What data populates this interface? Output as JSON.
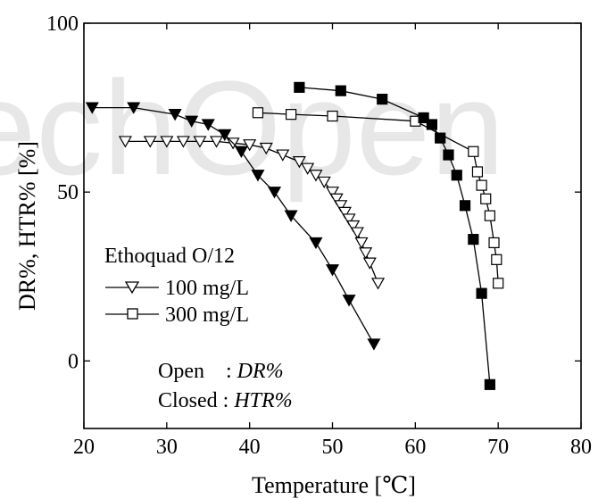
{
  "chart_data": {
    "type": "scatter",
    "xlabel": "Temperature [℃]",
    "ylabel": "DR%, HTR% [%]",
    "xlim": [
      20,
      80
    ],
    "ylim": [
      -20,
      100
    ],
    "xticks": [
      20,
      30,
      40,
      50,
      60,
      70,
      80
    ],
    "yticks": [
      0,
      50,
      100
    ],
    "grid": false,
    "legend": {
      "placement": "center-left",
      "title": "Ethoquad O/12",
      "entries": [
        {
          "label": "100 mg/L",
          "marker": "triangle-down-open"
        },
        {
          "label": "300 mg/L",
          "marker": "square-open"
        }
      ]
    },
    "annotations": [
      {
        "prefix": "Open : ",
        "value": "DR%"
      },
      {
        "prefix": "Closed : ",
        "value": "HTR%"
      }
    ],
    "series": [
      {
        "concentration": "100 mg/L",
        "measure": "DR%",
        "marker": "triangle-down",
        "filled": false,
        "x": [
          25,
          28,
          30,
          32,
          34,
          36,
          38,
          40,
          42,
          44,
          46,
          47,
          48,
          49,
          50,
          50.5,
          51,
          51.5,
          52,
          52.5,
          53,
          53.5,
          54,
          54.5,
          55.5
        ],
        "y": [
          65,
          65,
          65,
          65,
          65,
          65,
          64.5,
          64,
          63,
          61,
          59,
          57,
          55,
          53,
          50,
          48,
          46,
          44,
          42,
          40,
          38,
          35,
          32,
          29,
          23
        ]
      },
      {
        "concentration": "100 mg/L",
        "measure": "HTR%",
        "marker": "triangle-down",
        "filled": true,
        "x": [
          21,
          26,
          31,
          33,
          35,
          37,
          39,
          41,
          43,
          45,
          48,
          50,
          52,
          55
        ],
        "y": [
          75,
          75,
          73,
          71,
          70,
          67,
          62,
          55,
          50,
          43,
          35,
          27,
          18,
          5
        ]
      },
      {
        "concentration": "300 mg/L",
        "measure": "DR%",
        "marker": "square",
        "filled": false,
        "x": [
          41,
          45,
          50,
          60,
          67,
          67.5,
          68,
          68.5,
          69,
          69.5,
          69.8,
          70
        ],
        "y": [
          73.5,
          73,
          72.5,
          71,
          62,
          56,
          52,
          48,
          43,
          35,
          30,
          23
        ]
      },
      {
        "concentration": "300 mg/L",
        "measure": "HTR%",
        "marker": "square",
        "filled": true,
        "x": [
          46,
          51,
          56,
          61,
          62,
          63,
          64,
          65,
          66,
          67,
          68,
          69
        ],
        "y": [
          81,
          80,
          77.5,
          72,
          70,
          66,
          61,
          55,
          46,
          36,
          20,
          -7
        ]
      }
    ]
  },
  "watermark": {
    "text": "IntechOpen"
  }
}
